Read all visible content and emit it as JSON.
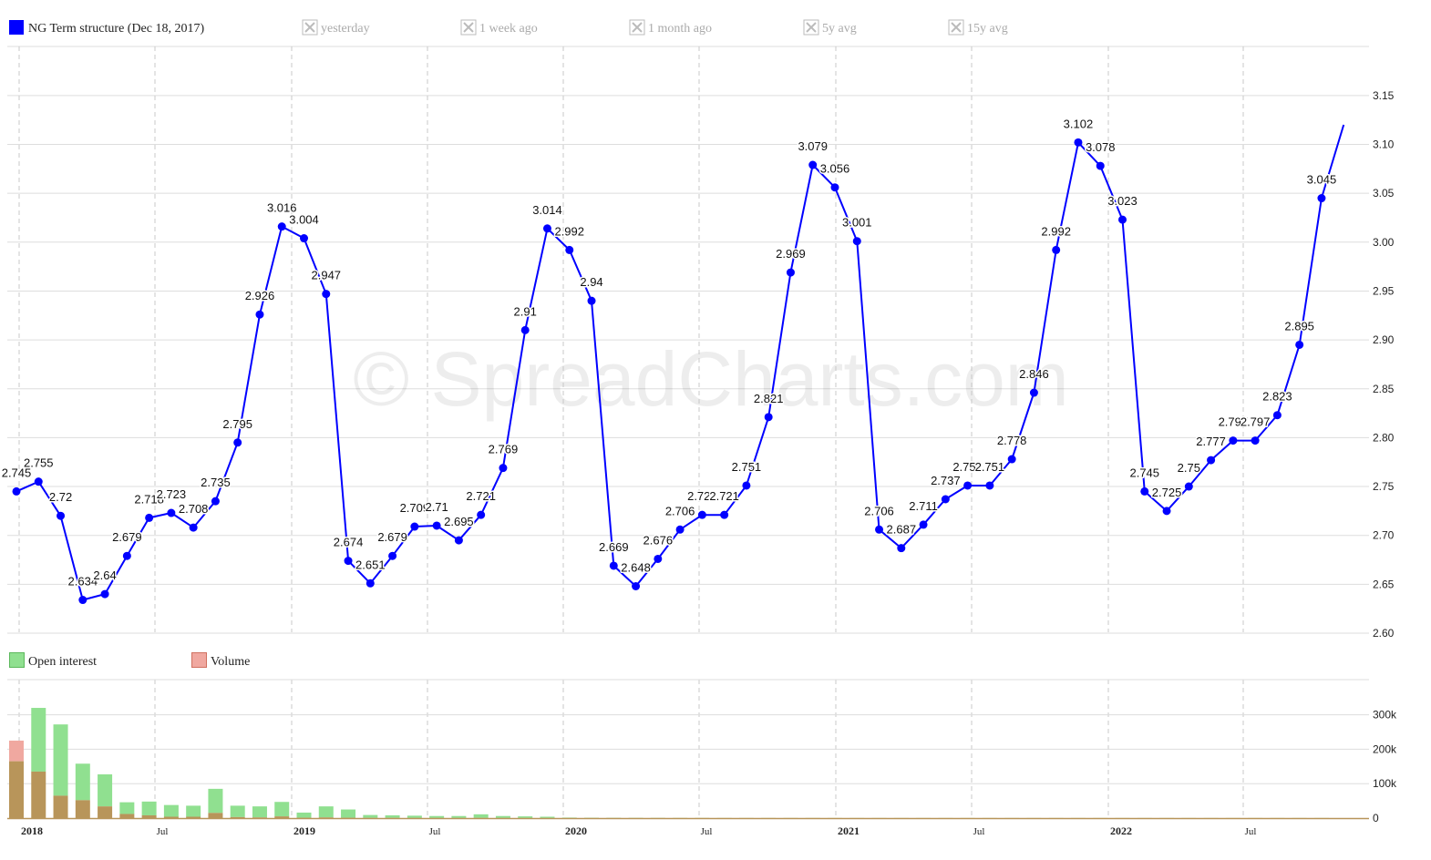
{
  "legend_top": [
    {
      "label": "NG Term structure (Dec 18, 2017)",
      "active": true,
      "color": "#0000ff"
    },
    {
      "label": "yesterday",
      "active": false
    },
    {
      "label": "1 week ago",
      "active": false
    },
    {
      "label": "1 month ago",
      "active": false
    },
    {
      "label": "5y avg",
      "active": false
    },
    {
      "label": "15y avg",
      "active": false
    }
  ],
  "legend_bottom": [
    {
      "label": "Open interest",
      "color": "#90e090"
    },
    {
      "label": "Volume",
      "color": "#f0a8a0"
    }
  ],
  "watermark": "© SpreadCharts.com",
  "colors": {
    "line": "#0000ff",
    "open_interest": "#90e090",
    "volume": "#f0a8a0",
    "overlap": "#b8955a",
    "grid": "#dddddd",
    "vgrid": "#c8c8c8"
  },
  "chart_data": [
    {
      "type": "line",
      "title": "",
      "series": [
        {
          "name": "NG Term structure (Dec 18, 2017)",
          "values": [
            2.745,
            2.755,
            2.72,
            2.634,
            2.64,
            2.679,
            2.718,
            2.723,
            2.708,
            2.735,
            2.795,
            2.926,
            3.016,
            3.004,
            2.947,
            2.674,
            2.651,
            2.679,
            2.709,
            2.71,
            2.695,
            2.721,
            2.769,
            2.91,
            3.014,
            2.992,
            2.94,
            2.669,
            2.648,
            2.676,
            2.706,
            2.721,
            2.721,
            2.751,
            2.821,
            2.969,
            3.079,
            3.056,
            3.001,
            2.706,
            2.687,
            2.711,
            2.737,
            2.751,
            2.751,
            2.778,
            2.846,
            2.992,
            3.102,
            3.078,
            3.023,
            2.745,
            2.725,
            2.75,
            2.777,
            2.797,
            2.797,
            2.823,
            2.895,
            3.045,
            3.12
          ],
          "labels": [
            "2.745",
            "2.755",
            "2.72",
            "2.634",
            "2.64",
            "2.679",
            "2.718",
            "2.723",
            "2.708",
            "2.735",
            "2.795",
            "2.926",
            "3.016",
            "3.004",
            "2.947",
            "2.674",
            "2.651",
            "2.679",
            "2.709",
            "2.71",
            "2.695",
            "2.721",
            "2.769",
            "2.91",
            "3.014",
            "2.992",
            "2.94",
            "2.669",
            "2.648",
            "2.676",
            "2.706",
            "2.721",
            "2.721",
            "2.751",
            "2.821",
            "2.969",
            "3.079",
            "3.056",
            "3.001",
            "2.706",
            "2.687",
            "2.711",
            "2.737",
            "2.751",
            "2.751",
            "2.778",
            "2.846",
            "2.992",
            "3.102",
            "3.078",
            "3.023",
            "2.745",
            "2.725",
            "2.75",
            "2.777",
            "2.797",
            "2.797",
            "2.823",
            "2.895",
            "3.045",
            ""
          ]
        }
      ],
      "x_start": "2018-01",
      "ylim": [
        2.6,
        3.15
      ],
      "yticks": [
        "2.60",
        "2.65",
        "2.70",
        "2.75",
        "2.80",
        "2.85",
        "2.90",
        "2.95",
        "3.00",
        "3.05",
        "3.10",
        "3.15"
      ],
      "grid": true
    },
    {
      "type": "bar",
      "series": [
        {
          "name": "Open interest",
          "values": [
            165000,
            320000,
            272000,
            158000,
            127000,
            46000,
            48000,
            38000,
            36000,
            85000,
            36000,
            34000,
            47000,
            16000,
            34000,
            25000,
            9000,
            8000,
            7000,
            6000,
            6000,
            11000,
            6000,
            5000,
            4000,
            1500,
            1000,
            800,
            700,
            600,
            500,
            500,
            400,
            400,
            400,
            400,
            400,
            300,
            300,
            300,
            300,
            300,
            300,
            300,
            300,
            300,
            300,
            300,
            300,
            300,
            300,
            300,
            300,
            300,
            300,
            300,
            300,
            300,
            300,
            300
          ]
        },
        {
          "name": "Volume",
          "values": [
            225000,
            135000,
            65000,
            52000,
            34000,
            12000,
            8000,
            4000,
            4000,
            15000,
            3000,
            2000,
            5000,
            1000,
            2000,
            1000,
            500,
            500,
            300,
            300,
            300,
            500,
            300,
            200,
            200,
            100,
            100,
            100,
            100,
            100,
            100,
            100,
            100,
            100,
            100,
            100,
            100,
            100,
            100,
            100,
            100,
            100,
            100,
            100,
            100,
            100,
            100,
            100,
            100,
            100,
            100,
            100,
            100,
            100,
            100,
            100,
            100,
            100,
            100,
            100
          ]
        }
      ],
      "ylim": [
        0,
        400000
      ],
      "yticks": [
        "0",
        "100k",
        "200k",
        "300k"
      ],
      "xticks": [
        {
          "label": "2018",
          "month_index": 0,
          "year": true
        },
        {
          "label": "Jul",
          "month_index": 6,
          "year": false
        },
        {
          "label": "2019",
          "month_index": 12,
          "year": true
        },
        {
          "label": "Jul",
          "month_index": 18,
          "year": false
        },
        {
          "label": "2020",
          "month_index": 24,
          "year": true
        },
        {
          "label": "Jul",
          "month_index": 30,
          "year": false
        },
        {
          "label": "2021",
          "month_index": 36,
          "year": true
        },
        {
          "label": "Jul",
          "month_index": 42,
          "year": false
        },
        {
          "label": "2022",
          "month_index": 48,
          "year": true
        },
        {
          "label": "Jul",
          "month_index": 54,
          "year": false
        }
      ]
    }
  ]
}
